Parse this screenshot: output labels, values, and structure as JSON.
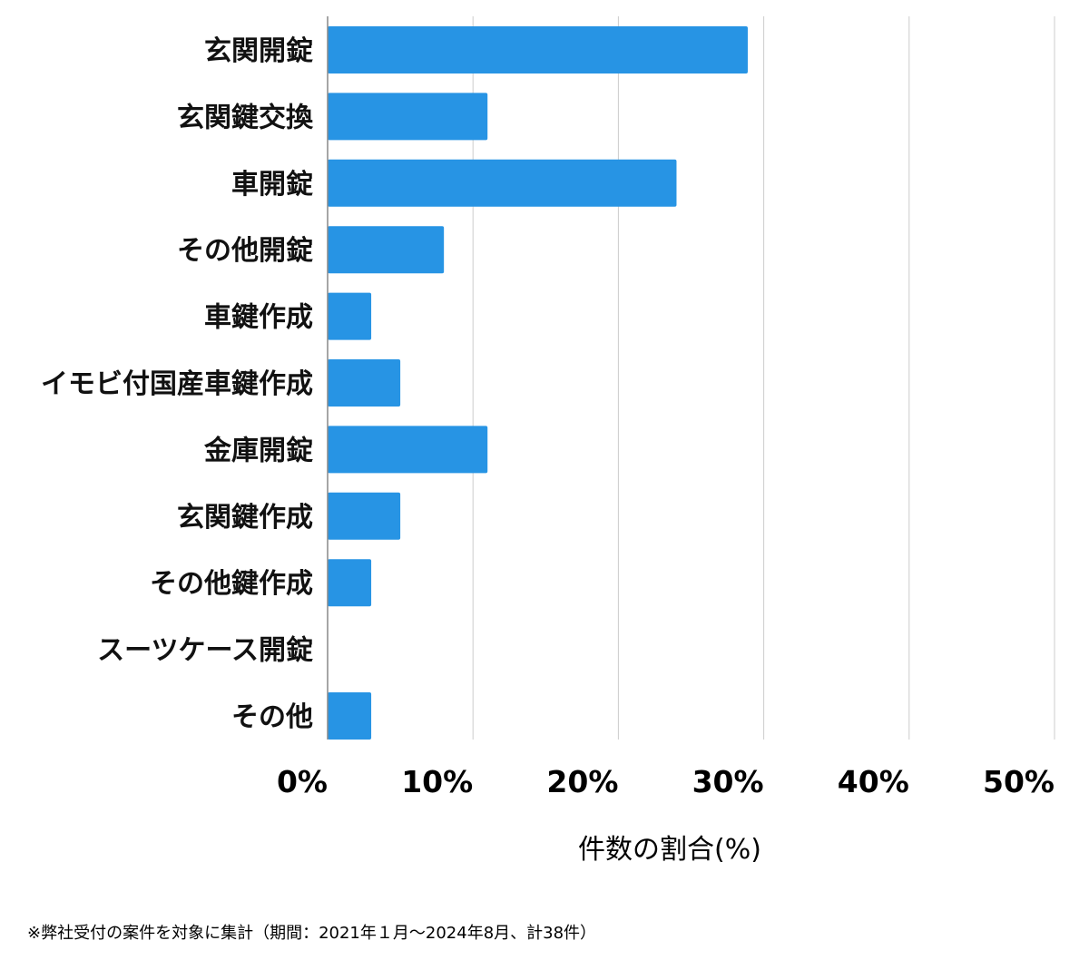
{
  "chart_data": {
    "type": "bar",
    "orientation": "horizontal",
    "categories": [
      "玄関開錠",
      "玄関鍵交換",
      "車開錠",
      "その他開錠",
      "車鍵作成",
      "イモビ付国産車鍵作成",
      "金庫開錠",
      "玄関鍵作成",
      "その他鍵作成",
      "スーツケース開錠",
      "その他"
    ],
    "values": [
      28.9,
      11.0,
      24.0,
      8.0,
      3.0,
      5.0,
      11.0,
      5.0,
      3.0,
      0,
      3.0
    ],
    "xlabel": "件数の割合(%)",
    "ylabel": "",
    "xlim": [
      0,
      50
    ],
    "xticks": [
      "0%",
      "10%",
      "20%",
      "30%",
      "40%",
      "50%"
    ],
    "grid": true,
    "bar_color": "#2794e4",
    "grid_color": "#cccccc",
    "axis_color": "#888888"
  },
  "footnote": "※弊社受付の案件を対象に集計（期間：2021年１月〜2024年8月、計38件）"
}
